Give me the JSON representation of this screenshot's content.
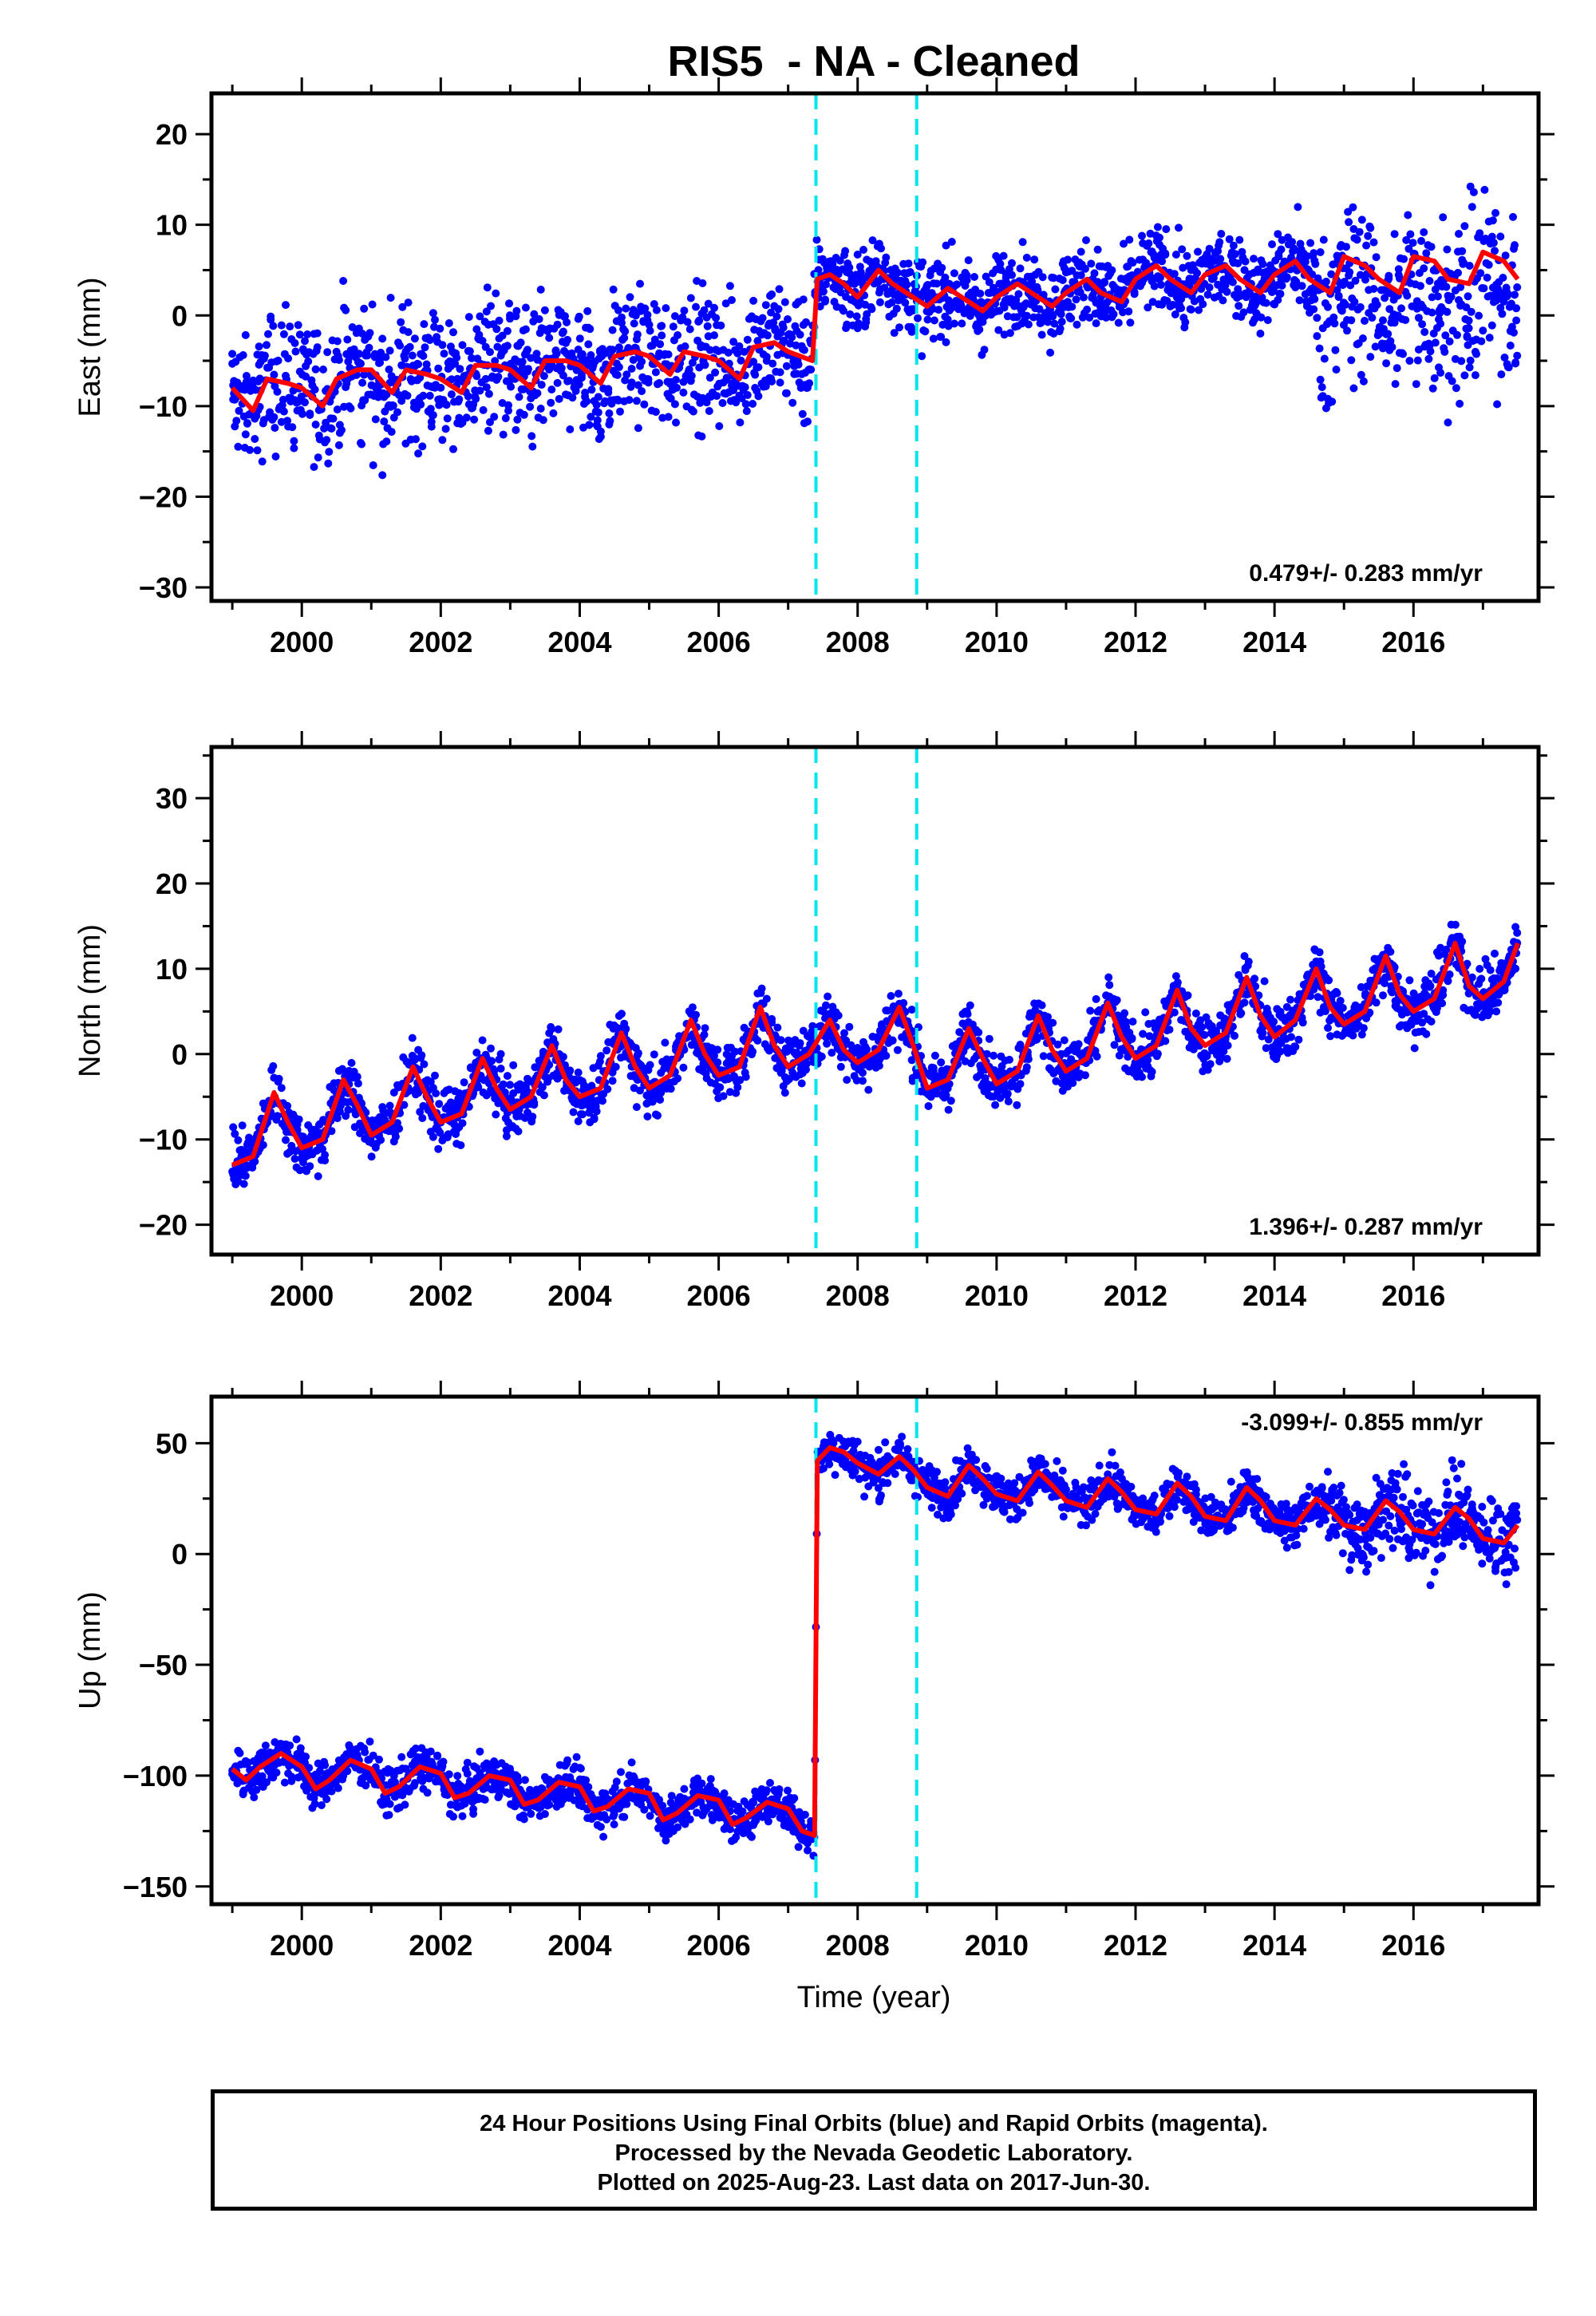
{
  "title": "RIS5  - NA - Cleaned",
  "footer": {
    "line1": "24 Hour Positions Using Final Orbits (blue) and Rapid Orbits (magenta).",
    "line2": "Processed by the Nevada Geodetic Laboratory.",
    "line3": "Plotted on 2025-Aug-23. Last data on 2017-Jun-30."
  },
  "colors": {
    "points": "#0000ff",
    "model": "#ff0000",
    "offset_lines": "#00e5ee"
  },
  "chart_data": [
    {
      "type": "scatter",
      "panel": "east",
      "ylabel": "East (mm)",
      "xlabel": "",
      "xlim": [
        1998.7,
        2017.8
      ],
      "ylim": [
        -31.5,
        24.5
      ],
      "xticks": [
        "2000",
        "2002",
        "2004",
        "2006",
        "2008",
        "2010",
        "2012",
        "2014",
        "2016"
      ],
      "yticks": [
        "−30",
        "−20",
        "−10",
        "0",
        "10",
        "20"
      ],
      "rate_label": "0.479+/- 0.283 mm/yr",
      "offsets": [
        2007.4,
        2008.85
      ],
      "model_series": {
        "x": [
          1999.0,
          1999.3,
          1999.5,
          1999.8,
          2000.0,
          2000.3,
          2000.5,
          2000.8,
          2001.0,
          2001.3,
          2001.5,
          2001.8,
          2002.0,
          2002.3,
          2002.5,
          2002.8,
          2003.0,
          2003.3,
          2003.5,
          2003.8,
          2004.0,
          2004.3,
          2004.5,
          2004.8,
          2005.0,
          2005.3,
          2005.5,
          2005.8,
          2006.0,
          2006.3,
          2006.5,
          2006.8,
          2007.0,
          2007.35,
          2007.42,
          2007.6,
          2007.8,
          2008.0,
          2008.3,
          2008.5,
          2008.8,
          2009.0,
          2009.3,
          2009.5,
          2009.8,
          2010.0,
          2010.3,
          2010.5,
          2010.8,
          2011.0,
          2011.3,
          2011.5,
          2011.8,
          2012.0,
          2012.3,
          2012.5,
          2012.8,
          2013.0,
          2013.3,
          2013.5,
          2013.8,
          2014.0,
          2014.3,
          2014.5,
          2014.8,
          2015.0,
          2015.3,
          2015.5,
          2015.8,
          2016.0,
          2016.3,
          2016.5,
          2016.8,
          2017.0,
          2017.3,
          2017.5
        ],
        "y": [
          -8,
          -10.5,
          -7,
          -7.5,
          -8,
          -10,
          -7,
          -6,
          -6,
          -8.5,
          -6,
          -6.5,
          -7,
          -8.5,
          -5.5,
          -5.5,
          -6,
          -8,
          -5,
          -5,
          -5.5,
          -7.5,
          -4.5,
          -4,
          -4.5,
          -6.5,
          -4,
          -4.5,
          -5,
          -7,
          -3.5,
          -3,
          -4,
          -5,
          4,
          4.5,
          3.5,
          2,
          5,
          3.5,
          2,
          1,
          3,
          2,
          0.5,
          2,
          3.5,
          2.5,
          1,
          2.5,
          4,
          2.5,
          1.5,
          4,
          5.5,
          4,
          2.5,
          4.5,
          5.5,
          4,
          2.5,
          4.5,
          6,
          4,
          2.5,
          6.5,
          5.5,
          4,
          2.5,
          6.5,
          6,
          4,
          3.5,
          7,
          6,
          4
        ]
      }
    },
    {
      "type": "scatter",
      "panel": "north",
      "ylabel": "North (mm)",
      "xlabel": "",
      "xlim": [
        1998.7,
        2017.8
      ],
      "ylim": [
        -23.5,
        36
      ],
      "xticks": [
        "2000",
        "2002",
        "2004",
        "2006",
        "2008",
        "2010",
        "2012",
        "2014",
        "2016"
      ],
      "yticks": [
        "−20",
        "−10",
        "0",
        "10",
        "20",
        "30"
      ],
      "rate_label": "1.396+/- 0.287 mm/yr",
      "offsets": [
        2007.4,
        2008.85
      ],
      "model_series": {
        "x": [
          1999.0,
          1999.3,
          1999.6,
          1999.8,
          2000.0,
          2000.3,
          2000.6,
          2000.8,
          2001.0,
          2001.3,
          2001.6,
          2001.8,
          2002.0,
          2002.3,
          2002.6,
          2002.8,
          2003.0,
          2003.3,
          2003.6,
          2003.8,
          2004.0,
          2004.3,
          2004.6,
          2004.8,
          2005.0,
          2005.3,
          2005.6,
          2005.8,
          2006.0,
          2006.3,
          2006.6,
          2006.8,
          2007.0,
          2007.3,
          2007.6,
          2007.8,
          2008.0,
          2008.3,
          2008.6,
          2008.8,
          2009.0,
          2009.3,
          2009.6,
          2009.8,
          2010.0,
          2010.3,
          2010.6,
          2010.8,
          2011.0,
          2011.3,
          2011.6,
          2011.8,
          2012.0,
          2012.3,
          2012.6,
          2012.8,
          2013.0,
          2013.3,
          2013.6,
          2013.8,
          2014.0,
          2014.3,
          2014.6,
          2014.8,
          2015.0,
          2015.3,
          2015.6,
          2015.8,
          2016.0,
          2016.3,
          2016.6,
          2016.8,
          2017.0,
          2017.3,
          2017.5
        ],
        "y": [
          -13,
          -12,
          -4.5,
          -8,
          -11,
          -10,
          -3,
          -6,
          -9.5,
          -8,
          -1.5,
          -5,
          -8,
          -7,
          -0.5,
          -4,
          -6.5,
          -5,
          1,
          -3,
          -5,
          -4,
          2.5,
          -1.5,
          -4,
          -2.5,
          4,
          0,
          -2.5,
          -1.5,
          5.5,
          1,
          -1.5,
          0,
          4,
          0.5,
          -1,
          0.5,
          5.5,
          1,
          -4,
          -3,
          3,
          -0.5,
          -3.5,
          -2,
          4.5,
          0.5,
          -2,
          -0.5,
          6,
          2,
          -0.5,
          1,
          7.5,
          3,
          1,
          2.5,
          9,
          4.5,
          2,
          4,
          10,
          5.5,
          3.5,
          5,
          11.5,
          7,
          5,
          6.5,
          13,
          8,
          6.5,
          8.5,
          13
        ]
      }
    },
    {
      "type": "scatter",
      "panel": "up",
      "ylabel": "Up (mm)",
      "xlabel": "Time (year)",
      "xlim": [
        1998.7,
        2017.8
      ],
      "ylim": [
        -158,
        71
      ],
      "xticks": [
        "2000",
        "2002",
        "2004",
        "2006",
        "2008",
        "2010",
        "2012",
        "2014",
        "2016"
      ],
      "yticks": [
        "−150",
        "−100",
        "−50",
        "0",
        "50"
      ],
      "rate_label": "-3.099+/- 0.855 mm/yr",
      "offsets": [
        2007.4,
        2008.85
      ],
      "model_series": {
        "x": [
          1999.0,
          1999.2,
          1999.4,
          1999.7,
          2000.0,
          2000.2,
          2000.4,
          2000.7,
          2001.0,
          2001.2,
          2001.4,
          2001.7,
          2002.0,
          2002.2,
          2002.4,
          2002.7,
          2003.0,
          2003.2,
          2003.4,
          2003.7,
          2004.0,
          2004.2,
          2004.4,
          2004.7,
          2005.0,
          2005.2,
          2005.4,
          2005.7,
          2006.0,
          2006.2,
          2006.4,
          2006.7,
          2007.0,
          2007.2,
          2007.38,
          2007.42,
          2007.6,
          2007.8,
          2008.0,
          2008.3,
          2008.6,
          2008.8,
          2009.0,
          2009.3,
          2009.6,
          2009.8,
          2010.0,
          2010.3,
          2010.6,
          2010.8,
          2011.0,
          2011.3,
          2011.6,
          2011.8,
          2012.0,
          2012.3,
          2012.6,
          2012.8,
          2013.0,
          2013.3,
          2013.6,
          2013.8,
          2014.0,
          2014.3,
          2014.6,
          2014.8,
          2015.0,
          2015.3,
          2015.6,
          2015.8,
          2016.0,
          2016.3,
          2016.6,
          2016.8,
          2017.0,
          2017.3,
          2017.5
        ],
        "y": [
          -97,
          -102,
          -96,
          -90,
          -96,
          -106,
          -102,
          -93,
          -97,
          -108,
          -105,
          -96,
          -99,
          -110,
          -108,
          -100,
          -102,
          -113,
          -111,
          -103,
          -105,
          -116,
          -114,
          -106,
          -108,
          -120,
          -117,
          -109,
          -111,
          -122,
          -119,
          -112,
          -115,
          -125,
          -127,
          42,
          48,
          46,
          41,
          36,
          44,
          38,
          30,
          26,
          40,
          34,
          27,
          24,
          37,
          31,
          24,
          21,
          34,
          28,
          20,
          18,
          32,
          26,
          17,
          15,
          30,
          24,
          15,
          13,
          25,
          20,
          13,
          11,
          24,
          19,
          11,
          9,
          21,
          16,
          7,
          5,
          13
        ]
      }
    }
  ]
}
